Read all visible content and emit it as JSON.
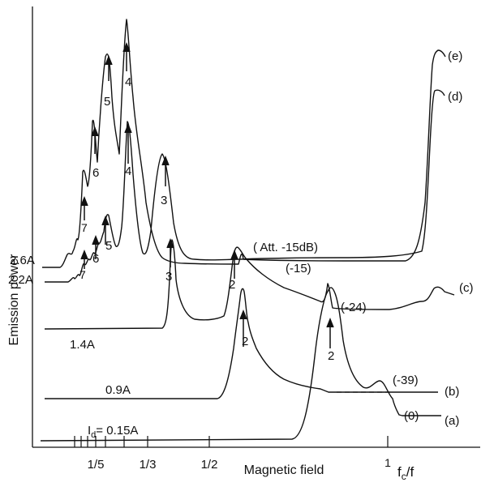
{
  "chart_data": {
    "type": "line",
    "xlabel": "Magnetic field",
    "ylabel": "Emission power",
    "x_tick_labels": [
      "1/5",
      "1/3",
      "1/2",
      "1"
    ],
    "x_secondary_label": "f",
    "x_secondary_subscript": "c",
    "x_secondary_tail": "/f",
    "series": [
      {
        "label": "(a)",
        "current": "I",
        "current_sub": "d",
        "current_value": "= 0.15A",
        "attenuation": "(0)"
      },
      {
        "label": "(b)",
        "current": "0.9A",
        "attenuation": "(-39)"
      },
      {
        "label": "(c)",
        "current": "1.4A",
        "attenuation": "(-24)"
      },
      {
        "label": "(d)",
        "current": "2.2A",
        "attenuation": "(-15)"
      },
      {
        "label": "(e)",
        "current": "2.6A",
        "attenuation": "( Att. -15dB)"
      }
    ],
    "peak_labels": {
      "a": [
        "2"
      ],
      "b": [
        "2"
      ],
      "c": [
        "2",
        "3"
      ],
      "d": [
        "3",
        "4",
        "5",
        "6",
        "7"
      ],
      "e": [
        "2",
        "3",
        "4",
        "5",
        "6",
        "7"
      ]
    },
    "grid": false
  }
}
